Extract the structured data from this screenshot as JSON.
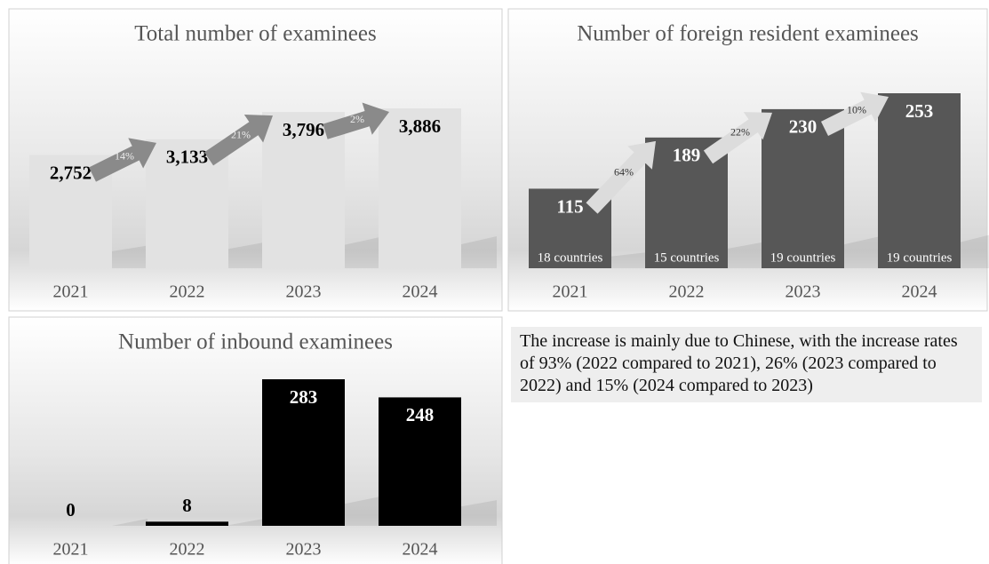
{
  "chart_data": [
    {
      "type": "bar",
      "title": "Total number of examinees",
      "categories": [
        "2021",
        "2022",
        "2023",
        "2024"
      ],
      "values": [
        2752,
        3133,
        3796,
        3886
      ],
      "value_labels": [
        "2,752",
        "3,133",
        "3,796",
        "3,886"
      ],
      "growth_labels": [
        "14%",
        "21%",
        "2%"
      ],
      "color": "#e2e2e2",
      "arrow_color": "#8a8a8a",
      "label_color": "#000000",
      "growth_label_color": "#eeeeee"
    },
    {
      "type": "bar",
      "title": "Number of foreign resident examinees",
      "categories": [
        "2021",
        "2022",
        "2023",
        "2024"
      ],
      "values": [
        115,
        189,
        230,
        253
      ],
      "growth_labels": [
        "64%",
        "22%",
        "10%"
      ],
      "bar_labels": [
        "18 countries",
        "15 countries",
        "19 countries",
        "19 countries"
      ],
      "color": "#575757",
      "arrow_color": "#dcdcdc",
      "label_color": "#ffffff",
      "growth_label_color": "#333333"
    },
    {
      "type": "bar",
      "title": "Number of inbound examinees",
      "categories": [
        "2021",
        "2022",
        "2023",
        "2024"
      ],
      "values": [
        0,
        8,
        283,
        248
      ],
      "color": "#000000",
      "label_color": "#ffffff"
    }
  ],
  "note": {
    "text": "The increase is mainly due to Chinese, with the increase rates of  93% (2022 compared to 2021), 26% (2023 compared to 2022) and 15% (2024 compared to 2023)"
  }
}
